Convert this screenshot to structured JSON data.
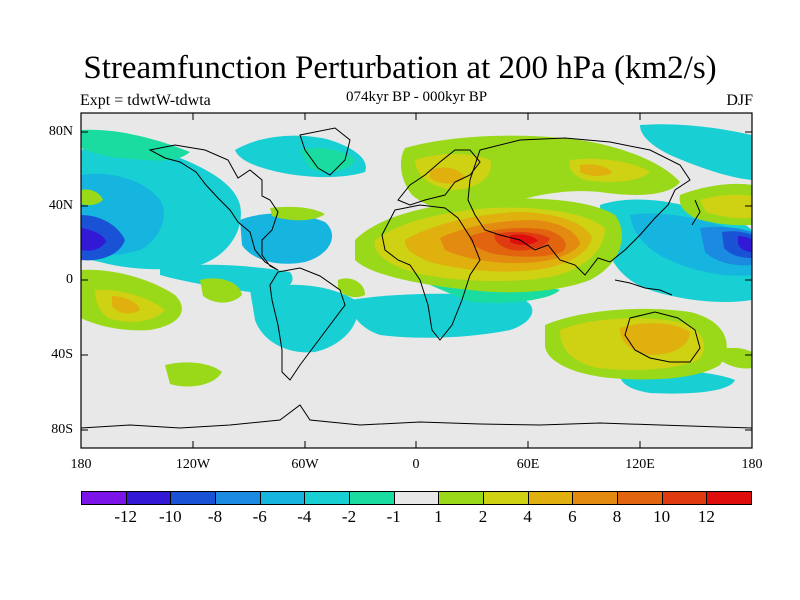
{
  "title": "Streamfunction Perturbation at 200 hPa (km2/s)",
  "subtitle": "074kyr BP - 000kyr BP",
  "left_label": "Expt = tdwtW-tdwta",
  "right_label": "DJF",
  "lat_labels": [
    "80N",
    "40N",
    "0",
    "40S",
    "80S"
  ],
  "lon_labels": [
    "180",
    "120W",
    "60W",
    "0",
    "60E",
    "120E",
    "180"
  ],
  "colorbar": {
    "labels": [
      "-12",
      "-10",
      "-8",
      "-6",
      "-4",
      "-2",
      "-1",
      "1",
      "2",
      "4",
      "6",
      "8",
      "10",
      "12"
    ],
    "colors": [
      "#7b14e8",
      "#3219d6",
      "#1a52d6",
      "#1a8be0",
      "#15b5df",
      "#18d0d4",
      "#1adca0",
      "#e8e8e8",
      "#9ad91a",
      "#cfd113",
      "#e0b00e",
      "#e38a10",
      "#e2640e",
      "#e03a10",
      "#e00d0d"
    ]
  },
  "colors": {
    "background": "#e8e8e8",
    "coast": "#000000"
  }
}
